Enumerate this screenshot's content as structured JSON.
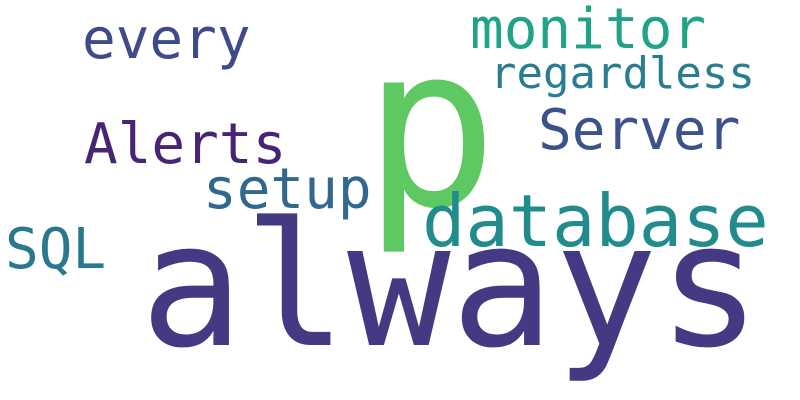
{
  "word_cloud": {
    "words": {
      "always": {
        "text": "always",
        "color": "#443a83"
      },
      "p": {
        "text": "p",
        "color": "#5ec962"
      },
      "database": {
        "text": "database",
        "color": "#228c8d"
      },
      "monitor": {
        "text": "monitor",
        "color": "#20a386"
      },
      "regardless": {
        "text": "regardless",
        "color": "#287d8e"
      },
      "every": {
        "text": "every",
        "color": "#3e4a89"
      },
      "server": {
        "text": "Server",
        "color": "#3b528b"
      },
      "alerts": {
        "text": "Alerts",
        "color": "#482475"
      },
      "setup": {
        "text": "setup",
        "color": "#31688e"
      },
      "sql": {
        "text": "SQL",
        "color": "#2a788e"
      }
    }
  }
}
